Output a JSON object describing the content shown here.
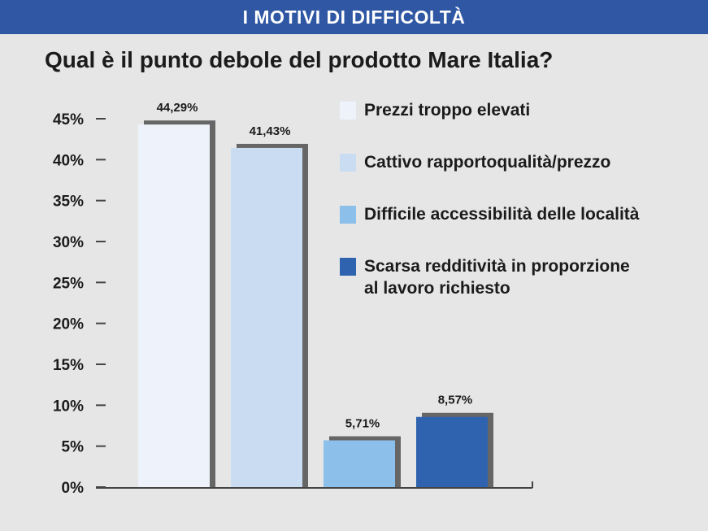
{
  "header": {
    "banner_title": "I MOTIVI DI DIFFICOLTÀ",
    "question": "Qual è il punto debole del prodotto Mare Italia?"
  },
  "colors": {
    "banner": "#2f57a3",
    "background": "#e6e6e6",
    "shadow": "#666666",
    "axis": "#444444"
  },
  "chart_data": {
    "type": "bar",
    "title": "Qual è il punto debole del prodotto Mare Italia?",
    "ylim": [
      0,
      45
    ],
    "yticks": [
      0,
      5,
      10,
      15,
      20,
      25,
      30,
      35,
      40,
      45
    ],
    "ytick_labels": [
      "0%",
      "5%",
      "10%",
      "15%",
      "20%",
      "25%",
      "30%",
      "35%",
      "40%",
      "45%"
    ],
    "grid": false,
    "legend_position": "right",
    "categories": [
      "Prezzi troppo elevati",
      "Cattivo rapportoqualità/prezzo",
      "Difficile accessibilità delle località",
      "Scarsa redditività in proporzione al lavoro richiesto"
    ],
    "values": [
      44.29,
      41.43,
      5.71,
      8.57
    ],
    "value_labels": [
      "44,29%",
      "41,43%",
      "5,71%",
      "8,57%"
    ],
    "bar_colors": [
      "#eef3fb",
      "#c9dcf2",
      "#8cbfea",
      "#2f63b0"
    ]
  },
  "legend": [
    {
      "lines": [
        "Prezzi troppo elevati"
      ],
      "color": "#eef3fb"
    },
    {
      "lines": [
        "Cattivo rapportoqualità/prezzo"
      ],
      "color": "#c9dcf2"
    },
    {
      "lines": [
        "Difficile accessibilità delle località"
      ],
      "color": "#8cbfea"
    },
    {
      "lines": [
        "Scarsa redditività in proporzione",
        "al lavoro richiesto"
      ],
      "color": "#2f63b0"
    }
  ]
}
